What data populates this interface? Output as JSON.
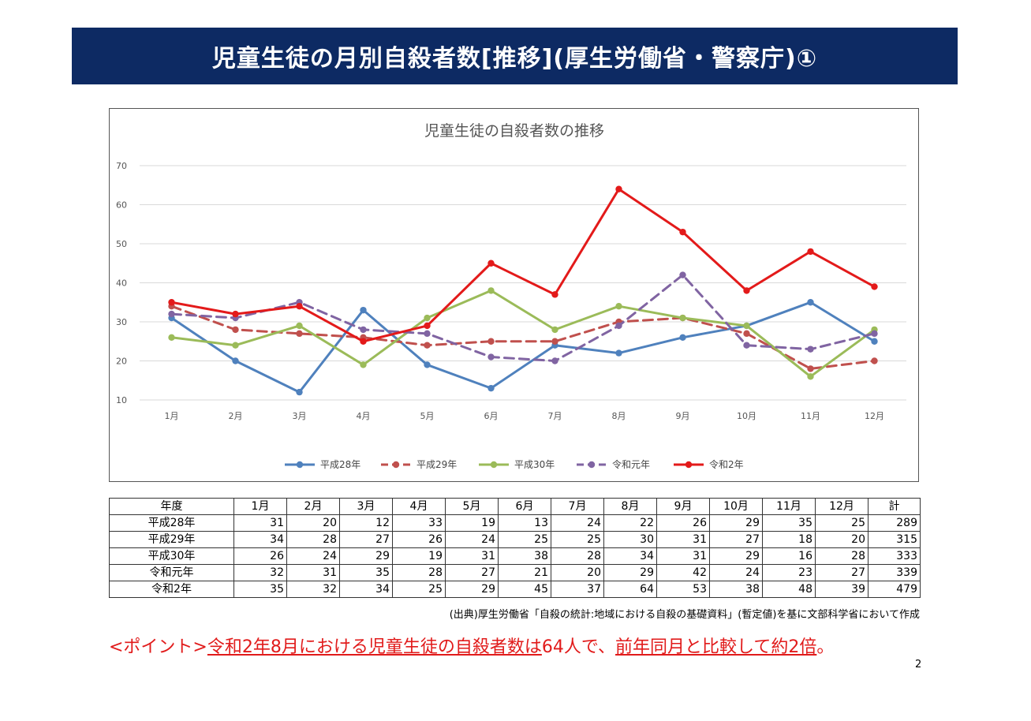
{
  "slide": {
    "title": "児童生徒の月別自殺者数[推移](厚生労働省・警察庁)①",
    "page_number": "2",
    "source_note": "(出典)厚生労働省「自殺の統計:地域における自殺の基礎資料」(暫定値)を基に文部科学省において作成",
    "point": {
      "prefix": "<ポイント>",
      "part1": "令和2年8月における児童生徒の自殺者数は",
      "part2": "64人で、",
      "part3": "前年同月と比較して約2倍",
      "suffix": "。"
    }
  },
  "chart_data": {
    "type": "line",
    "title": "児童生徒の自殺者数の推移",
    "xlabel": "",
    "ylabel": "",
    "categories": [
      "1月",
      "2月",
      "3月",
      "4月",
      "5月",
      "6月",
      "7月",
      "8月",
      "9月",
      "10月",
      "11月",
      "12月"
    ],
    "y_ticks": [
      "10",
      "20",
      "30",
      "40",
      "50",
      "60",
      "70"
    ],
    "ylim": [
      10,
      70
    ],
    "grid": true,
    "legend_position": "bottom",
    "series": [
      {
        "name": "平成28年",
        "color": "#4f81bd",
        "dash": "solid",
        "values": [
          31,
          20,
          12,
          33,
          19,
          13,
          24,
          22,
          26,
          29,
          35,
          25
        ]
      },
      {
        "name": "平成29年",
        "color": "#c0504d",
        "dash": "dashed",
        "values": [
          34,
          28,
          27,
          26,
          24,
          25,
          25,
          30,
          31,
          27,
          18,
          20
        ]
      },
      {
        "name": "平成30年",
        "color": "#9bbb59",
        "dash": "solid",
        "values": [
          26,
          24,
          29,
          19,
          31,
          38,
          28,
          34,
          31,
          29,
          16,
          28
        ]
      },
      {
        "name": "令和元年",
        "color": "#8064a2",
        "dash": "dashed",
        "values": [
          32,
          31,
          35,
          28,
          27,
          21,
          20,
          29,
          42,
          24,
          23,
          27
        ]
      },
      {
        "name": "令和2年",
        "color": "#e31a1a",
        "dash": "solid",
        "values": [
          35,
          32,
          34,
          25,
          29,
          45,
          37,
          64,
          53,
          38,
          48,
          39
        ]
      }
    ]
  },
  "table": {
    "headers": [
      "年度",
      "1月",
      "2月",
      "3月",
      "4月",
      "5月",
      "6月",
      "7月",
      "8月",
      "9月",
      "10月",
      "11月",
      "12月",
      "計"
    ],
    "rows": [
      [
        "平成28年",
        "31",
        "20",
        "12",
        "33",
        "19",
        "13",
        "24",
        "22",
        "26",
        "29",
        "35",
        "25",
        "289"
      ],
      [
        "平成29年",
        "34",
        "28",
        "27",
        "26",
        "24",
        "25",
        "25",
        "30",
        "31",
        "27",
        "18",
        "20",
        "315"
      ],
      [
        "平成30年",
        "26",
        "24",
        "29",
        "19",
        "31",
        "38",
        "28",
        "34",
        "31",
        "29",
        "16",
        "28",
        "333"
      ],
      [
        "令和元年",
        "32",
        "31",
        "35",
        "28",
        "27",
        "21",
        "20",
        "29",
        "42",
        "24",
        "23",
        "27",
        "339"
      ],
      [
        "令和2年",
        "35",
        "32",
        "34",
        "25",
        "29",
        "45",
        "37",
        "64",
        "53",
        "38",
        "48",
        "39",
        "479"
      ]
    ]
  }
}
